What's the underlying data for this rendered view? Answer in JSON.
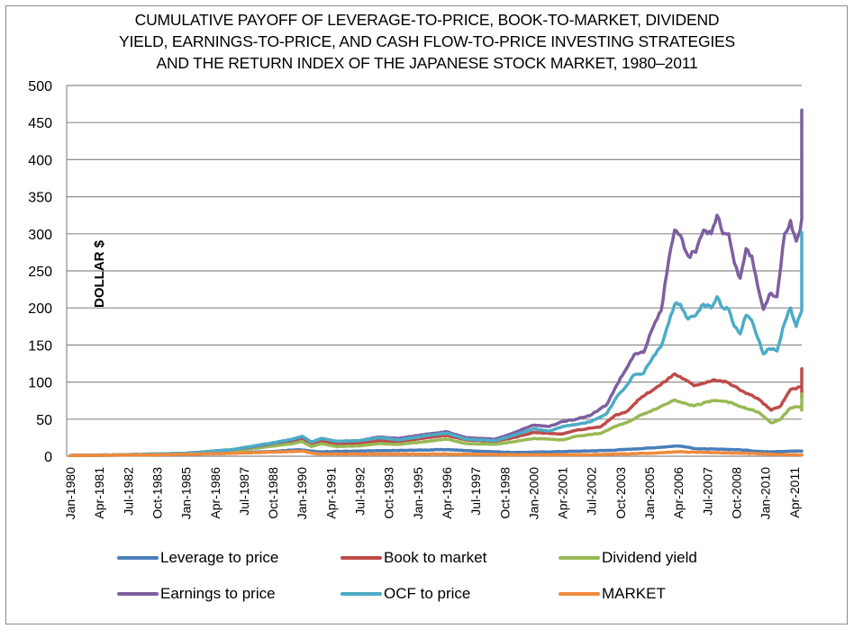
{
  "chart_data": {
    "type": "line",
    "title_lines": [
      "CUMULATIVE PAYOFF OF LEVERAGE-TO-PRICE, BOOK-TO-MARKET, DIVIDEND",
      "YIELD, EARNINGS-TO-PRICE, AND CASH FLOW-TO-PRICE INVESTING STRATEGIES",
      "AND THE RETURN INDEX OF THE JAPANESE STOCK MARKET, 1980–2011"
    ],
    "xlabel": "",
    "ylabel": "DOLLAR $",
    "ylim": [
      0,
      500
    ],
    "yticks": [
      0,
      50,
      100,
      150,
      200,
      250,
      300,
      350,
      400,
      450,
      500
    ],
    "grid": "horizontal",
    "x_unit": "months since Jan-1980",
    "xlim": [
      0,
      380
    ],
    "xtick_labels": [
      "Jan-1980",
      "Apr-1981",
      "Jul-1982",
      "Oct-1983",
      "Jan-1985",
      "Apr-1986",
      "Jul-1987",
      "Oct-1988",
      "Jan-1990",
      "Apr-1991",
      "Jul-1992",
      "Oct-1993",
      "Jan-1995",
      "Apr-1996",
      "Jul-1997",
      "Oct-1998",
      "Jan-2000",
      "Apr-2001",
      "Jul-2002",
      "Oct-2003",
      "Jan-2005",
      "Apr-2006",
      "Jul-2007",
      "Oct-2008",
      "Jan-2010",
      "Apr-2011"
    ],
    "xtick_step_months": 15,
    "legend_position": "bottom",
    "series": [
      {
        "name": "Leverage to price",
        "color": "#4a7ebb",
        "points": [
          [
            0,
            1
          ],
          [
            48,
            2
          ],
          [
            84,
            4
          ],
          [
            108,
            7
          ],
          [
            118,
            9
          ],
          [
            128,
            6
          ],
          [
            150,
            7
          ],
          [
            175,
            8
          ],
          [
            195,
            9
          ],
          [
            210,
            7
          ],
          [
            230,
            5
          ],
          [
            250,
            6
          ],
          [
            280,
            8
          ],
          [
            300,
            11
          ],
          [
            315,
            14
          ],
          [
            325,
            10
          ],
          [
            345,
            9
          ],
          [
            360,
            6
          ],
          [
            375,
            7
          ],
          [
            380,
            7
          ]
        ]
      },
      {
        "name": "Book to market",
        "color": "#be4b48",
        "points": [
          [
            0,
            1
          ],
          [
            30,
            2
          ],
          [
            60,
            4
          ],
          [
            84,
            8
          ],
          [
            100,
            14
          ],
          [
            115,
            20
          ],
          [
            120,
            24
          ],
          [
            125,
            16
          ],
          [
            130,
            20
          ],
          [
            138,
            16
          ],
          [
            150,
            17
          ],
          [
            160,
            21
          ],
          [
            170,
            20
          ],
          [
            185,
            25
          ],
          [
            195,
            28
          ],
          [
            205,
            22
          ],
          [
            220,
            20
          ],
          [
            228,
            24
          ],
          [
            240,
            32
          ],
          [
            255,
            30
          ],
          [
            262,
            35
          ],
          [
            275,
            40
          ],
          [
            282,
            55
          ],
          [
            288,
            60
          ],
          [
            296,
            80
          ],
          [
            305,
            95
          ],
          [
            313,
            111
          ],
          [
            318,
            104
          ],
          [
            323,
            95
          ],
          [
            333,
            103
          ],
          [
            340,
            100
          ],
          [
            348,
            88
          ],
          [
            356,
            78
          ],
          [
            363,
            62
          ],
          [
            368,
            68
          ],
          [
            373,
            90
          ],
          [
            380,
            94
          ],
          [
            385,
            80
          ],
          [
            390,
            98
          ],
          [
            395,
            86
          ],
          [
            400,
            118
          ],
          [
            404,
            114
          ],
          [
            408,
            115
          ],
          [
            412,
            112
          ]
        ]
      },
      {
        "name": "Dividend yield",
        "color": "#98b954",
        "points": [
          [
            0,
            1
          ],
          [
            30,
            2
          ],
          [
            60,
            4
          ],
          [
            84,
            7
          ],
          [
            100,
            12
          ],
          [
            115,
            17
          ],
          [
            120,
            20
          ],
          [
            125,
            13
          ],
          [
            130,
            17
          ],
          [
            138,
            13
          ],
          [
            150,
            14
          ],
          [
            160,
            17
          ],
          [
            170,
            16
          ],
          [
            185,
            20
          ],
          [
            195,
            23
          ],
          [
            205,
            17
          ],
          [
            220,
            16
          ],
          [
            228,
            19
          ],
          [
            240,
            24
          ],
          [
            255,
            22
          ],
          [
            262,
            27
          ],
          [
            275,
            31
          ],
          [
            282,
            40
          ],
          [
            288,
            45
          ],
          [
            296,
            56
          ],
          [
            305,
            66
          ],
          [
            313,
            76
          ],
          [
            318,
            72
          ],
          [
            323,
            68
          ],
          [
            333,
            75
          ],
          [
            340,
            74
          ],
          [
            348,
            66
          ],
          [
            356,
            60
          ],
          [
            363,
            45
          ],
          [
            368,
            50
          ],
          [
            373,
            65
          ],
          [
            380,
            68
          ],
          [
            385,
            62
          ],
          [
            390,
            72
          ],
          [
            395,
            68
          ],
          [
            400,
            84
          ],
          [
            404,
            82
          ],
          [
            408,
            82
          ],
          [
            412,
            79
          ]
        ]
      },
      {
        "name": "Earnings to price",
        "color": "#7d5fa0",
        "points": [
          [
            0,
            1
          ],
          [
            30,
            2
          ],
          [
            60,
            4
          ],
          [
            84,
            9
          ],
          [
            100,
            15
          ],
          [
            115,
            22
          ],
          [
            120,
            26
          ],
          [
            125,
            19
          ],
          [
            130,
            24
          ],
          [
            138,
            20
          ],
          [
            150,
            21
          ],
          [
            160,
            26
          ],
          [
            170,
            24
          ],
          [
            185,
            30
          ],
          [
            195,
            33
          ],
          [
            205,
            25
          ],
          [
            220,
            23
          ],
          [
            228,
            30
          ],
          [
            240,
            42
          ],
          [
            248,
            40
          ],
          [
            255,
            47
          ],
          [
            262,
            50
          ],
          [
            270,
            56
          ],
          [
            278,
            70
          ],
          [
            283,
            96
          ],
          [
            288,
            118
          ],
          [
            292,
            137
          ],
          [
            297,
            140
          ],
          [
            302,
            175
          ],
          [
            306,
            196
          ],
          [
            310,
            265
          ],
          [
            313,
            305
          ],
          [
            316,
            298
          ],
          [
            320,
            270
          ],
          [
            324,
            275
          ],
          [
            328,
            305
          ],
          [
            332,
            300
          ],
          [
            335,
            325
          ],
          [
            338,
            300
          ],
          [
            341,
            300
          ],
          [
            344,
            260
          ],
          [
            347,
            240
          ],
          [
            350,
            280
          ],
          [
            353,
            270
          ],
          [
            356,
            230
          ],
          [
            359,
            198
          ],
          [
            362,
            218
          ],
          [
            366,
            215
          ],
          [
            370,
            300
          ],
          [
            373,
            318
          ],
          [
            376,
            290
          ],
          [
            380,
            325
          ],
          [
            383,
            336
          ],
          [
            385,
            390
          ],
          [
            388,
            350
          ],
          [
            391,
            340
          ],
          [
            394,
            350
          ],
          [
            397,
            340
          ],
          [
            400,
            420
          ],
          [
            403,
            467
          ],
          [
            406,
            440
          ],
          [
            409,
            440
          ],
          [
            412,
            462
          ],
          [
            415,
            438
          ],
          [
            418,
            422
          ]
        ]
      },
      {
        "name": "OCF to price",
        "color": "#4bacc6",
        "points": [
          [
            0,
            1
          ],
          [
            30,
            2
          ],
          [
            60,
            4
          ],
          [
            84,
            9
          ],
          [
            100,
            16
          ],
          [
            115,
            23
          ],
          [
            120,
            27
          ],
          [
            125,
            19
          ],
          [
            130,
            24
          ],
          [
            138,
            20
          ],
          [
            150,
            21
          ],
          [
            160,
            25
          ],
          [
            170,
            22
          ],
          [
            185,
            28
          ],
          [
            195,
            31
          ],
          [
            205,
            23
          ],
          [
            220,
            21
          ],
          [
            228,
            27
          ],
          [
            240,
            37
          ],
          [
            248,
            34
          ],
          [
            255,
            40
          ],
          [
            262,
            43
          ],
          [
            270,
            47
          ],
          [
            278,
            58
          ],
          [
            283,
            80
          ],
          [
            288,
            95
          ],
          [
            292,
            110
          ],
          [
            297,
            112
          ],
          [
            302,
            135
          ],
          [
            306,
            148
          ],
          [
            310,
            180
          ],
          [
            313,
            205
          ],
          [
            316,
            205
          ],
          [
            320,
            185
          ],
          [
            324,
            190
          ],
          [
            328,
            205
          ],
          [
            332,
            200
          ],
          [
            335,
            215
          ],
          [
            338,
            200
          ],
          [
            341,
            198
          ],
          [
            344,
            175
          ],
          [
            347,
            165
          ],
          [
            350,
            190
          ],
          [
            353,
            183
          ],
          [
            356,
            160
          ],
          [
            359,
            138
          ],
          [
            362,
            145
          ],
          [
            366,
            142
          ],
          [
            370,
            180
          ],
          [
            373,
            200
          ],
          [
            376,
            175
          ],
          [
            380,
            205
          ],
          [
            383,
            215
          ],
          [
            385,
            262
          ],
          [
            388,
            230
          ],
          [
            391,
            225
          ],
          [
            394,
            230
          ],
          [
            397,
            225
          ],
          [
            400,
            275
          ],
          [
            403,
            300
          ],
          [
            406,
            290
          ],
          [
            409,
            290
          ],
          [
            412,
            302
          ],
          [
            415,
            285
          ],
          [
            418,
            275
          ]
        ]
      },
      {
        "name": "MARKET",
        "color": "#f08a3c",
        "points": [
          [
            0,
            1
          ],
          [
            48,
            2
          ],
          [
            84,
            4
          ],
          [
            110,
            6
          ],
          [
            120,
            7
          ],
          [
            128,
            3
          ],
          [
            160,
            3
          ],
          [
            195,
            3
          ],
          [
            230,
            2
          ],
          [
            270,
            2
          ],
          [
            300,
            4
          ],
          [
            315,
            6
          ],
          [
            330,
            5
          ],
          [
            350,
            4
          ],
          [
            370,
            2
          ],
          [
            418,
            2
          ]
        ]
      }
    ]
  }
}
